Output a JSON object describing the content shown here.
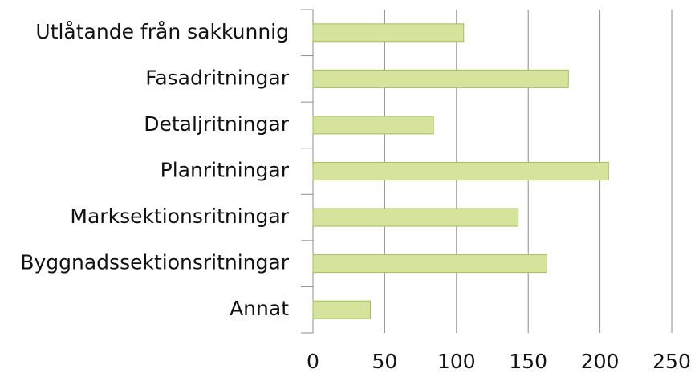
{
  "chart_data": {
    "type": "bar",
    "orientation": "horizontal",
    "categories": [
      "Utlåtande från sakkunnig",
      "Fasadritningar",
      "Detaljritningar",
      "Planritningar",
      "Marksektionsritningar",
      "Byggnadssektionsritningar",
      "Annat"
    ],
    "values": [
      105,
      178,
      84,
      206,
      143,
      163,
      40
    ],
    "color": "#d5e39d",
    "edgecolor": "#a3bf5e",
    "xlim": [
      0,
      250
    ],
    "xticks": [
      0,
      50,
      100,
      150,
      200,
      250
    ],
    "grid": true
  }
}
